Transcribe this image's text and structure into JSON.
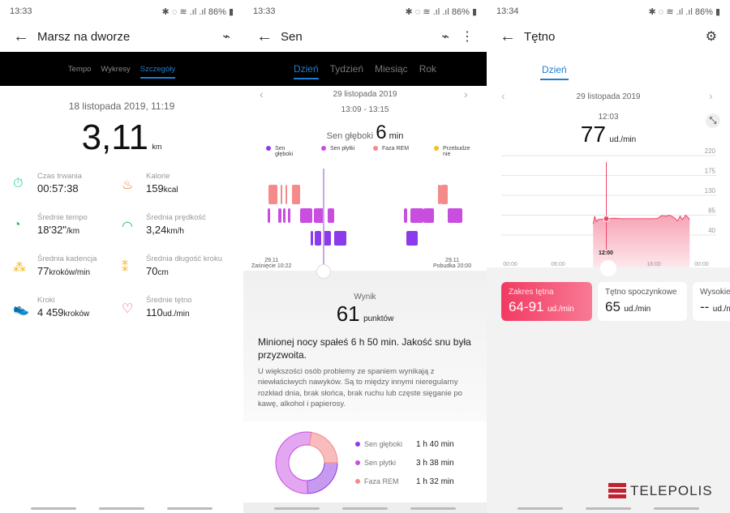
{
  "status": [
    {
      "time": "13:33",
      "battery": "86%"
    },
    {
      "time": "13:33",
      "battery": "86%"
    },
    {
      "time": "13:34",
      "battery": "86%"
    }
  ],
  "workout": {
    "title": "Marsz na dworze",
    "tabs": [
      "Tempo",
      "Wykresy",
      "Szczegóły"
    ],
    "active_tab": "Szczegóły",
    "date": "18 listopada 2019, 11:19",
    "distance": "3,11",
    "distance_unit": "km",
    "metrics": [
      {
        "label": "Czas trwania",
        "value": "00:57:38",
        "unit": "",
        "icon": "stopwatch-icon",
        "color": "#1fc9a0"
      },
      {
        "label": "Kalorie",
        "value": "159",
        "unit": "kcal",
        "icon": "flame-icon",
        "color": "#f57b3c"
      },
      {
        "label": "Średnie tempo",
        "value": "18'32\"",
        "unit": "/km",
        "icon": "pace-gauge-icon",
        "color": "#2fc45a"
      },
      {
        "label": "Średnia prędkość",
        "value": "3,24",
        "unit": "km/h",
        "icon": "speedometer-icon",
        "color": "#2fc45a"
      },
      {
        "label": "Średnia kadencja",
        "value": "77",
        "unit": "kroków/min",
        "icon": "footprints-icon",
        "color": "#f5b820"
      },
      {
        "label": "Średnia długość kroku",
        "value": "70",
        "unit": "cm",
        "icon": "stride-icon",
        "color": "#f5b820"
      },
      {
        "label": "Kroki",
        "value": "4 459",
        "unit": "kroków",
        "icon": "shoe-icon",
        "color": "#2f8ef0"
      },
      {
        "label": "Średnie tętno",
        "value": "110",
        "unit": "ud./min",
        "icon": "heart-pulse-icon",
        "color": "#f0446a"
      }
    ]
  },
  "sleep": {
    "title": "Sen",
    "tabs": [
      "Dzień",
      "Tydzień",
      "Miesiąc",
      "Rok"
    ],
    "active_tab": "Dzień",
    "date": "29 listopada 2019",
    "range": "13:09 - 13:15",
    "selected_label": "Sen głęboki",
    "selected_value": "6",
    "selected_unit": "min",
    "legend": [
      {
        "label": "Sen głęboki",
        "color": "#8b3bea"
      },
      {
        "label": "Sen płytki",
        "color": "#c94ee0"
      },
      {
        "label": "Faza REM",
        "color": "#f58a8a"
      },
      {
        "label": "Przebudzenie",
        "color": "#f5c020"
      }
    ],
    "start_date": "29.11",
    "start_label": "Zaśnięcie 10:22",
    "end_date": "29.11",
    "end_label": "Pobudka 20:00",
    "score_label": "Wynik",
    "score": "61",
    "score_unit": "punktów",
    "summary": "Minionej nocy spałeś 6 h 50 min. Jakość snu była przyzwoita.",
    "advice": "U większości osób problemy ze spaniem wynikają z niewłaściwych nawyków. Są to między innymi nieregularny rozkład dnia, brak słońca, brak ruchu lub częste sięganie po kawę, alkohol i papierosy.",
    "breakdown": [
      {
        "label": "Sen głęboki",
        "value": "1 h 40 min",
        "minutes": 100,
        "color": "#8b3bea"
      },
      {
        "label": "Sen płytki",
        "value": "3 h 38 min",
        "minutes": 218,
        "color": "#c94ee0"
      },
      {
        "label": "Faza REM",
        "value": "1 h 32 min",
        "minutes": 92,
        "color": "#f58a8a"
      }
    ]
  },
  "heart": {
    "title": "Tętno",
    "tabs": [
      "Dzień"
    ],
    "date": "29 listopada 2019",
    "selected_time": "12:03",
    "selected_value": "77",
    "unit": "ud./min",
    "marker_label": "12:00",
    "cards": [
      {
        "label": "Zakres tętna",
        "value": "64-91",
        "unit": "ud./min"
      },
      {
        "label": "Tętno spoczynkowe",
        "value": "65",
        "unit": "ud./min"
      },
      {
        "label": "Wysokie",
        "value": "--",
        "unit": "ud./min"
      }
    ],
    "chart_data": {
      "type": "area",
      "x_ticks": [
        "00:00",
        "06:00",
        "12:00",
        "18:00",
        "00:00"
      ],
      "y_ticks": [
        40,
        85,
        130,
        175,
        220
      ],
      "ylim": [
        40,
        220
      ],
      "series": [
        {
          "x": [
            10.4,
            10.6,
            10.8,
            11,
            11.5,
            12,
            12.05,
            13,
            14,
            15,
            16,
            17,
            18,
            18.5,
            19,
            19.5,
            20,
            20.5,
            21,
            21.3,
            21.6,
            22,
            22.3,
            22.5
          ],
          "y": [
            65,
            83,
            70,
            75,
            76,
            77,
            77,
            78,
            77,
            77,
            77,
            77,
            77,
            78,
            84,
            83,
            85,
            80,
            72,
            83,
            75,
            85,
            80,
            74
          ]
        }
      ]
    }
  },
  "watermark": "TELEPOLIS"
}
